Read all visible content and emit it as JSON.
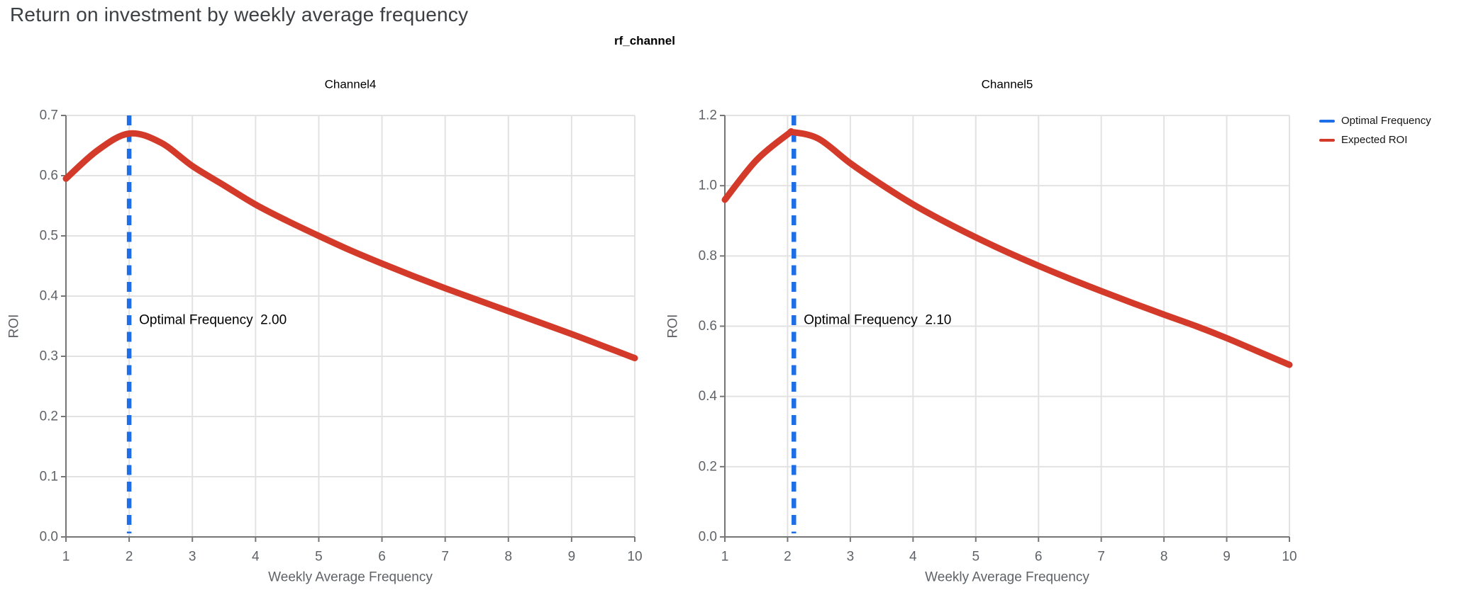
{
  "page": {
    "title": "Return on investment by weekly average frequency"
  },
  "figure": {
    "facet_title": "rf_channel"
  },
  "legend": {
    "items": [
      {
        "label": "Optimal Frequency",
        "color": "#1e6ee8"
      },
      {
        "label": "Expected ROI",
        "color": "#d43a2a"
      }
    ]
  },
  "colors": {
    "optimal_line": "#1e6ee8",
    "roi_line": "#d43a2a",
    "axis": "#767676",
    "grid": "#e2e2e2",
    "tick_text": "#5f6368",
    "axis_title_text": "#5f6368",
    "subplot_title_text": "#000000",
    "annotation_text": "#000000"
  },
  "chart_data": [
    {
      "type": "line",
      "title": "Channel4",
      "xlabel": "Weekly Average Frequency",
      "ylabel": "ROI",
      "xlim": [
        1,
        10
      ],
      "ylim": [
        0,
        0.7
      ],
      "xticks": [
        1,
        2,
        3,
        4,
        5,
        6,
        7,
        8,
        9,
        10
      ],
      "yticks": [
        "0.0",
        "0.1",
        "0.2",
        "0.3",
        "0.4",
        "0.5",
        "0.6",
        "0.7"
      ],
      "grid": true,
      "optimal_frequency": 2.0,
      "annotation": {
        "label": "Optimal Frequency",
        "value": "2.00"
      },
      "series": [
        {
          "name": "Expected ROI",
          "x": [
            1,
            1.5,
            2,
            2.5,
            3,
            3.5,
            4,
            4.5,
            5,
            5.5,
            6,
            6.5,
            7,
            7.5,
            8,
            8.5,
            9,
            9.5,
            10
          ],
          "y": [
            0.595,
            0.642,
            0.67,
            0.655,
            0.616,
            0.584,
            0.552,
            0.525,
            0.5,
            0.476,
            0.454,
            0.433,
            0.413,
            0.394,
            0.375,
            0.356,
            0.337,
            0.317,
            0.297
          ]
        }
      ]
    },
    {
      "type": "line",
      "title": "Channel5",
      "xlabel": "Weekly Average Frequency",
      "ylabel": "ROI",
      "xlim": [
        1,
        10
      ],
      "ylim": [
        0,
        1.2
      ],
      "xticks": [
        1,
        2,
        3,
        4,
        5,
        6,
        7,
        8,
        9,
        10
      ],
      "yticks": [
        "0.0",
        "0.2",
        "0.4",
        "0.6",
        "0.8",
        "1.0",
        "1.2"
      ],
      "grid": true,
      "optimal_frequency": 2.1,
      "annotation": {
        "label": "Optimal Frequency",
        "value": "2.10"
      },
      "series": [
        {
          "name": "Expected ROI",
          "x": [
            1,
            1.5,
            2,
            2.1,
            2.5,
            3,
            3.5,
            4,
            4.5,
            5,
            5.5,
            6,
            6.5,
            7,
            7.5,
            8,
            8.5,
            9,
            9.5,
            10
          ],
          "y": [
            0.96,
            1.072,
            1.146,
            1.152,
            1.133,
            1.064,
            1.003,
            0.947,
            0.898,
            0.853,
            0.811,
            0.772,
            0.735,
            0.7,
            0.666,
            0.633,
            0.601,
            0.566,
            0.528,
            0.49
          ]
        }
      ]
    }
  ]
}
